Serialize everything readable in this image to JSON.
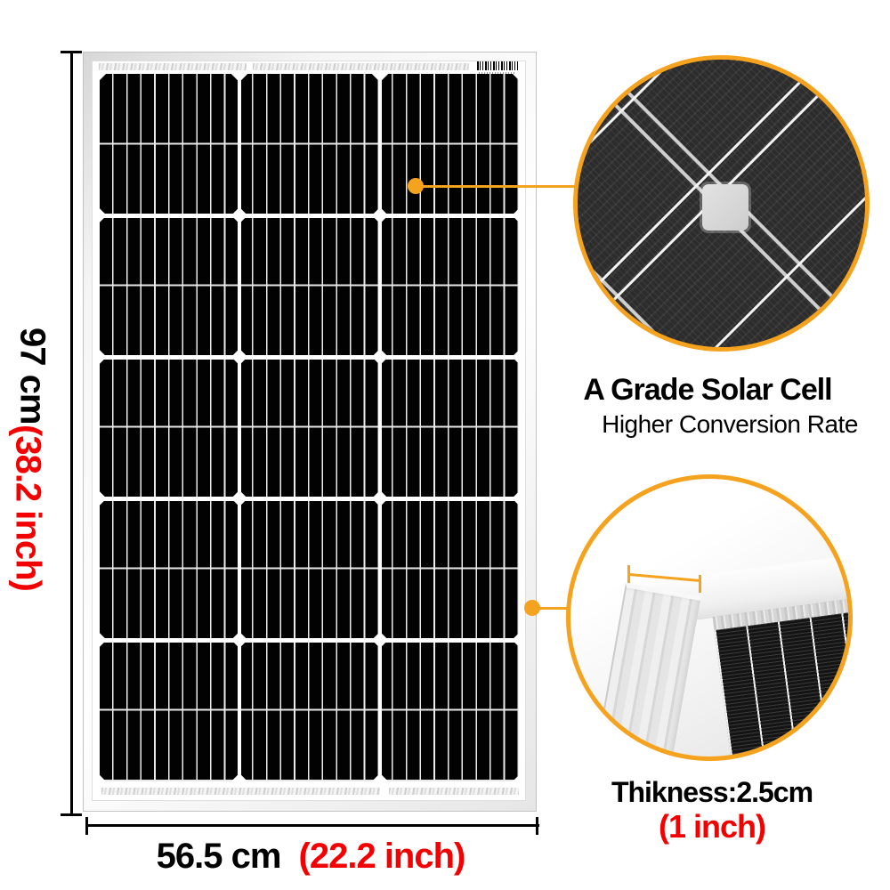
{
  "dimensions": {
    "height": {
      "metric": "97 cm",
      "imperial": "(38.2 inch)"
    },
    "width": {
      "metric": "56.5 cm",
      "imperial": "(22.2 inch)"
    }
  },
  "callouts": {
    "solar_cell": {
      "title": "A Grade Solar Cell",
      "subtitle": "Higher Conversion Rate"
    },
    "thickness": {
      "title": "Thikness:2.5cm",
      "imperial": "(1 inch)"
    }
  },
  "colors": {
    "accent_orange": "#F5A21E",
    "dimension_red": "#F40000",
    "text_black": "#000000",
    "cell_black": "#020202",
    "cell_line_white": "#EBEBEB",
    "frame_silver": "#E6E6E6"
  },
  "icons": {
    "leader_dot": "filled-circle",
    "barcode": "vertical-stripes",
    "cell_diamond": "white-diamond"
  }
}
